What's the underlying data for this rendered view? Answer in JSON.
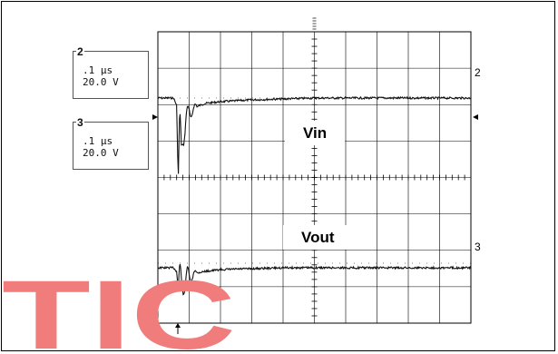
{
  "channel_boxes": [
    {
      "channel": "2",
      "time_div": ".1 µs",
      "volts_div": "20.0 V"
    },
    {
      "channel": "3",
      "time_div": ".1 µs",
      "volts_div": "20.0 V"
    }
  ],
  "right_markers": {
    "ch2": "2",
    "ch3": "3"
  },
  "colors": {
    "trace": "#111111",
    "grid": "#000000",
    "watermark": "#f07c7c"
  },
  "chart_data": {
    "type": "line",
    "x_unit": "µs",
    "y_unit": "V",
    "x_range": [
      0,
      1.0
    ],
    "grid_divisions": {
      "x": 10,
      "y": 8
    },
    "grid": true,
    "series": [
      {
        "name": "Vin",
        "channel": "2",
        "scale_v_per_div": 20.0,
        "x": [
          0.0,
          0.05,
          0.06,
          0.065,
          0.07,
          0.075,
          0.08,
          0.09,
          0.1,
          0.12,
          0.15,
          0.2,
          0.3,
          0.4,
          0.5,
          0.6,
          0.7,
          0.8,
          0.9,
          1.0
        ],
        "y": [
          0,
          0,
          -4,
          -45,
          -15,
          -30,
          -20,
          -12,
          -8,
          -5,
          -3,
          -2,
          -1,
          -0.5,
          0,
          0,
          0,
          0,
          0,
          0
        ]
      },
      {
        "name": "Vout",
        "channel": "3",
        "scale_v_per_div": 20.0,
        "x": [
          0.0,
          0.05,
          0.06,
          0.065,
          0.07,
          0.075,
          0.08,
          0.09,
          0.1,
          0.12,
          0.15,
          0.2,
          0.3,
          0.4,
          0.5,
          0.6,
          0.7,
          0.8,
          0.9,
          1.0
        ],
        "y": [
          0,
          0,
          -2,
          -12,
          -7,
          -10,
          -8,
          -6,
          -5,
          -3,
          -2,
          -1,
          -0.5,
          0,
          0,
          0,
          0,
          0,
          0,
          0
        ]
      }
    ]
  },
  "watermark_text": "TIC"
}
